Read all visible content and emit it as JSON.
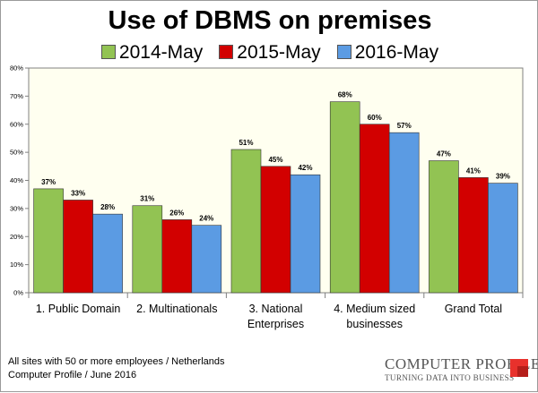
{
  "title": "Use of DBMS on premises",
  "legend": [
    {
      "name": "2014-May",
      "color": "#92c353"
    },
    {
      "name": "2015-May",
      "color": "#d20000"
    },
    {
      "name": "2016-May",
      "color": "#5b9be3"
    }
  ],
  "chart_data": {
    "type": "bar",
    "title": "Use of DBMS on premises",
    "categories": [
      [
        "1. Public Domain"
      ],
      [
        "2. Multinationals"
      ],
      [
        "3. National",
        "Enterprises"
      ],
      [
        "4. Medium sized",
        "businesses"
      ],
      [
        "Grand Total"
      ]
    ],
    "series": [
      {
        "name": "2014-May",
        "color": "#92c353",
        "values": [
          37,
          31,
          51,
          68,
          47
        ]
      },
      {
        "name": "2015-May",
        "color": "#d20000",
        "values": [
          33,
          26,
          45,
          60,
          41
        ]
      },
      {
        "name": "2016-May",
        "color": "#5b9be3",
        "values": [
          28,
          24,
          42,
          57,
          39
        ]
      }
    ],
    "ylim": [
      0,
      80
    ],
    "yticks": [
      "0%",
      "10%",
      "20%",
      "30%",
      "40%",
      "50%",
      "60%",
      "70%",
      "80%"
    ],
    "value_suffix": "%",
    "plot_background": "#fffff0",
    "grid": false,
    "legend_position": "top"
  },
  "footnote": {
    "line1": "All sites with 50 or more employees / Netherlands",
    "line2": "Computer Profile / June 2016"
  },
  "logo": {
    "name": "COMPUTER PROFILE",
    "tagline": "TURNING DATA INTO BUSINESS"
  }
}
